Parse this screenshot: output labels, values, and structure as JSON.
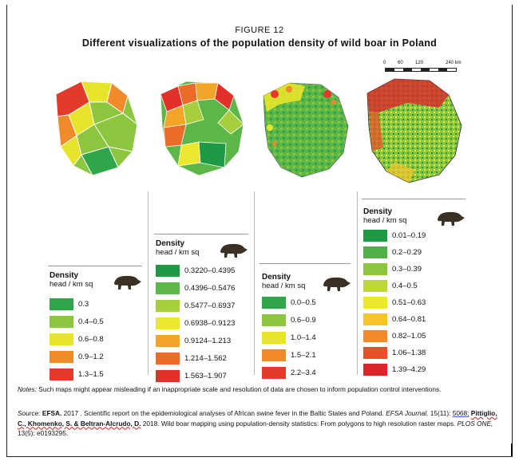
{
  "figure": {
    "label": "FIGURE  12",
    "title": "Different visualizations  of the population  density of wild boar in Poland"
  },
  "scale": {
    "ticks": [
      "0",
      "60",
      "120",
      "240 km"
    ]
  },
  "panels": [
    {
      "legend": {
        "title": "Density",
        "unit": "head / km sq",
        "items": [
          {
            "label": "0.3",
            "color": "#2fa64a"
          },
          {
            "label": "0.4–0.5",
            "color": "#8cc63f"
          },
          {
            "label": "0.6–0.8",
            "color": "#e7e52b"
          },
          {
            "label": "0.9–1.2",
            "color": "#f08a2a"
          },
          {
            "label": "1.3–1.5",
            "color": "#e23a2b"
          }
        ]
      }
    },
    {
      "legend": {
        "title": "Density",
        "unit": "head / km sq",
        "items": [
          {
            "label": "0.3220–0.4395",
            "color": "#1e9a45"
          },
          {
            "label": "0.4396–0.5476",
            "color": "#5bb848"
          },
          {
            "label": "0.5477–0.6937",
            "color": "#a6cf3d"
          },
          {
            "label": "0.6938–0.9123",
            "color": "#ece830"
          },
          {
            "label": "0.9124–1.213",
            "color": "#f3a52a"
          },
          {
            "label": "1.214–1.562",
            "color": "#ec6b27"
          },
          {
            "label": "1.563–1.907",
            "color": "#e2302a"
          }
        ]
      }
    },
    {
      "legend": {
        "title": "Density",
        "unit": "head / km sq",
        "items": [
          {
            "label": "0.0–0.5",
            "color": "#2fa64a"
          },
          {
            "label": "0.6–0.9",
            "color": "#8cc63f"
          },
          {
            "label": "1.0–1.4",
            "color": "#e7e52b"
          },
          {
            "label": "1.5–2.1",
            "color": "#f08a2a"
          },
          {
            "label": "2.2–3.4",
            "color": "#e23a2b"
          }
        ]
      }
    },
    {
      "legend": {
        "title": "Density",
        "unit": "head / km sq",
        "items": [
          {
            "label": "0.01–0.19",
            "color": "#1e9a45"
          },
          {
            "label": "0.2–0.29",
            "color": "#4fb047"
          },
          {
            "label": "0.3–0.39",
            "color": "#8cc63f"
          },
          {
            "label": "0.4–0.5",
            "color": "#bcd83a"
          },
          {
            "label": "0.51–0.63",
            "color": "#ece830"
          },
          {
            "label": "0.64–0.81",
            "color": "#f7c42c"
          },
          {
            "label": "0.82–1.05",
            "color": "#f08a2a"
          },
          {
            "label": "1.06–1.38",
            "color": "#e8502a"
          },
          {
            "label": "1.39–4.29",
            "color": "#d9262a"
          }
        ]
      }
    }
  ],
  "notes": {
    "label": "Notes:",
    "text": "Such maps might appear misleading  if an inappropriate  scale and resolution of data are chosen to inform population  control interventions."
  },
  "source": {
    "label": "Source:",
    "efsa": "EFSA.",
    "line1": "2017 . Scientific report on the epidemiological analyses of African swine fever in the Baltic States and Poland.",
    "journal": "EFSA Journal,",
    "vol": " 15(11): ",
    "page": "5068;",
    "authors": "Pittiglio, C., Khomenko, S. & Beltran-Alcrudo, D.",
    "line2b": "2018.  Wild boar mapping  using population-density statistics:  From polygons  to high resolution  raster maps.",
    "plos": "PLOS ONE,",
    "line2c": " 13(5): e0193295."
  }
}
